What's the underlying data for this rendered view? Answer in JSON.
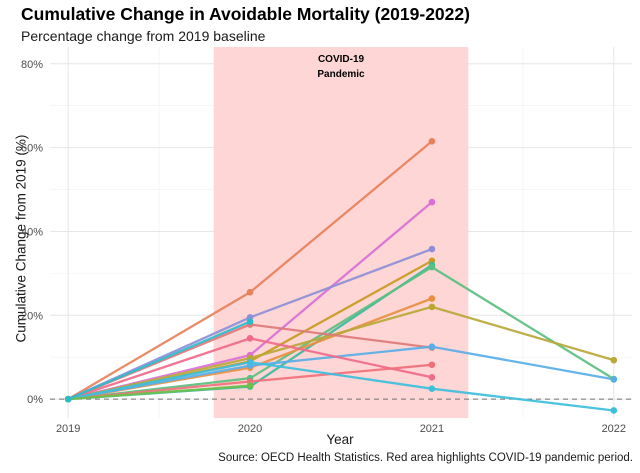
{
  "chart_data": {
    "type": "line",
    "title": "Cumulative Change in Avoidable Mortality (2019-2022)",
    "subtitle": "Percentage change from 2019 baseline",
    "xlabel": "Year",
    "ylabel": "Cumulative Change from 2019 (%)",
    "caption": "Source: OECD Health Statistics. Red area highlights COVID-19 pandemic period.",
    "x_ticks": [
      "2019",
      "2020",
      "2021",
      "2022"
    ],
    "y_ticks": [
      {
        "value": 0,
        "label": "0%"
      },
      {
        "value": 20,
        "label": "20%"
      },
      {
        "value": 40,
        "label": "40%"
      },
      {
        "value": 60,
        "label": "60%"
      },
      {
        "value": 80,
        "label": "80%"
      }
    ],
    "xlim": [
      2018.9,
      2022.1
    ],
    "ylim": [
      -4.5,
      84
    ],
    "reference_line": {
      "y": 0,
      "style": "dashed"
    },
    "highlight": {
      "x_from": 2019.8,
      "x_to": 2021.2,
      "label_lines": [
        "COVID-19",
        "Pandemic"
      ],
      "color": "#ffd6d6"
    },
    "grid": true,
    "legend": "none",
    "series": [
      {
        "color": "#e8815a",
        "points": [
          [
            2019,
            0
          ],
          [
            2020,
            25.5
          ],
          [
            2021,
            61.5
          ]
        ]
      },
      {
        "color": "#da70d6",
        "points": [
          [
            2019,
            0
          ],
          [
            2020,
            10.5
          ],
          [
            2021,
            47
          ]
        ]
      },
      {
        "color": "#8c8fd8",
        "points": [
          [
            2019,
            0
          ],
          [
            2020,
            19.5
          ],
          [
            2021,
            35.8
          ]
        ]
      },
      {
        "color": "#c99a20",
        "points": [
          [
            2019,
            0
          ],
          [
            2020,
            9
          ],
          [
            2021,
            33
          ]
        ]
      },
      {
        "color": "#3cb8a0",
        "points": [
          [
            2019,
            0
          ],
          [
            2020,
            3
          ],
          [
            2021,
            32
          ]
        ]
      },
      {
        "color": "#5bbf7f",
        "points": [
          [
            2019,
            0
          ],
          [
            2020,
            5
          ],
          [
            2021,
            31.5
          ],
          [
            2022,
            4.8
          ]
        ]
      },
      {
        "color": "#e89040",
        "points": [
          [
            2019,
            0
          ],
          [
            2020,
            7.5
          ],
          [
            2021,
            24
          ]
        ]
      },
      {
        "color": "#b8a838",
        "points": [
          [
            2019,
            0
          ],
          [
            2020,
            9.8
          ],
          [
            2021,
            22
          ],
          [
            2022,
            9.3
          ]
        ]
      },
      {
        "color": "#e07a7a",
        "points": [
          [
            2019,
            0
          ],
          [
            2020,
            17.8
          ],
          [
            2021,
            12.3
          ]
        ]
      },
      {
        "color": "#5aaee8",
        "points": [
          [
            2019,
            0
          ],
          [
            2020,
            8
          ],
          [
            2021,
            12.5
          ],
          [
            2022,
            4.7
          ]
        ]
      },
      {
        "color": "#f06a8a",
        "points": [
          [
            2019,
            0
          ],
          [
            2020,
            14.5
          ],
          [
            2021,
            5.2
          ]
        ]
      },
      {
        "color": "#f0707a",
        "points": [
          [
            2019,
            0
          ],
          [
            2020,
            4.2
          ],
          [
            2021,
            8.2
          ]
        ]
      },
      {
        "color": "#3dbfdc",
        "points": [
          [
            2019,
            0
          ],
          [
            2020,
            8.8
          ],
          [
            2021,
            2.5
          ],
          [
            2022,
            -2.7
          ]
        ]
      },
      {
        "color": "#6cc04a",
        "points": [
          [
            2019,
            0
          ],
          [
            2020,
            3.2
          ]
        ]
      },
      {
        "color": "#2bbccc",
        "points": [
          [
            2019,
            0
          ],
          [
            2020,
            18.5
          ]
        ]
      }
    ]
  }
}
